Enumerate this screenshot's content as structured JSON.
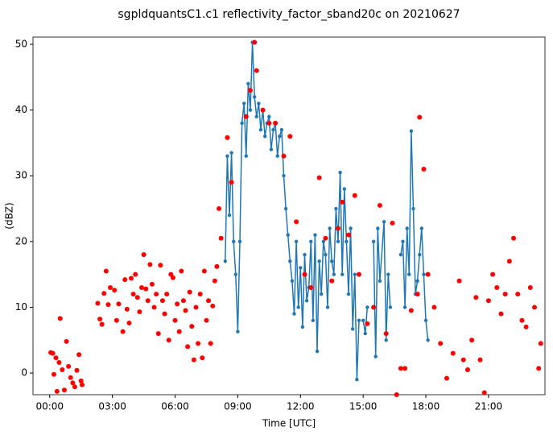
{
  "chart_data": {
    "type": "line",
    "title": "sgpldquantsC1.c1 reflectivity_factor_sband20c on 20210627",
    "xlabel": "Time [UTC]",
    "ylabel": "(dBZ)",
    "xlim": [
      -0.8,
      23.7
    ],
    "ylim": [
      -3.3,
      51.1
    ],
    "xticks": [
      {
        "value": 0,
        "label": "00:00"
      },
      {
        "value": 3,
        "label": "03:00"
      },
      {
        "value": 6,
        "label": "06:00"
      },
      {
        "value": 9,
        "label": "09:00"
      },
      {
        "value": 12,
        "label": "12:00"
      },
      {
        "value": 15,
        "label": "15:00"
      },
      {
        "value": 18,
        "label": "18:00"
      },
      {
        "value": 21,
        "label": "21:00"
      }
    ],
    "yticks": [
      0,
      10,
      20,
      30,
      40,
      50
    ],
    "series": [
      {
        "type": "line",
        "color": "#1f77b4",
        "x": [
          8.4,
          8.5,
          8.6,
          8.7,
          8.8,
          8.9,
          9.0,
          9.1,
          9.2,
          9.3,
          9.4,
          9.5,
          9.6,
          9.7,
          9.8,
          9.9,
          10.0,
          10.1,
          10.2,
          10.3,
          10.4,
          10.5,
          10.6,
          10.7,
          10.8,
          10.9,
          11.0,
          11.1,
          11.2,
          11.3,
          11.4,
          11.5,
          11.6,
          11.7,
          11.8,
          11.9,
          12.0,
          12.1,
          12.2,
          12.3,
          12.4,
          12.5,
          12.6,
          12.7,
          12.8,
          12.9,
          13.0,
          13.1,
          13.2,
          13.3,
          13.4,
          13.5,
          13.6,
          13.7,
          13.8,
          13.9,
          14.0,
          14.1,
          14.2,
          14.3,
          14.4,
          14.5,
          14.6,
          14.7,
          14.8,
          14.9,
          15.0,
          15.1,
          15.2,
          15.35,
          15.5,
          15.6,
          15.7,
          15.8,
          16.0,
          16.1,
          16.2,
          16.3,
          16.55,
          16.8,
          16.9,
          17.0,
          17.1,
          17.2,
          17.3,
          17.4,
          17.5,
          17.6,
          17.7,
          17.8,
          17.9,
          18.0,
          18.1
        ],
        "values": [
          17,
          33,
          24,
          33.5,
          20,
          15,
          6.3,
          20,
          38,
          41,
          33,
          44,
          40,
          50.3,
          42,
          39,
          41,
          37,
          40,
          36,
          38,
          39,
          34,
          37,
          38,
          33,
          36,
          37,
          30,
          25,
          21,
          17,
          14,
          9,
          20,
          10,
          16,
          7,
          18,
          11,
          13,
          20,
          8,
          21,
          3.3,
          17,
          12,
          20,
          18,
          10,
          22,
          17,
          15,
          25,
          20,
          30.5,
          15,
          28,
          20,
          12,
          22,
          6.7,
          15,
          -1,
          8,
          null,
          8,
          6,
          10,
          null,
          20,
          2.5,
          22,
          14,
          23,
          5,
          15,
          10,
          null,
          18,
          20,
          10,
          22,
          15,
          36.8,
          25,
          12,
          14,
          18,
          22,
          15,
          8,
          5
        ]
      },
      {
        "type": "scatter",
        "color": "#ff0000",
        "x": [
          0.05,
          0.15,
          0.2,
          0.3,
          0.35,
          0.45,
          0.5,
          0.6,
          0.7,
          0.8,
          0.9,
          1.0,
          1.1,
          1.2,
          1.3,
          1.4,
          1.5,
          1.55,
          2.3,
          2.4,
          2.5,
          2.6,
          2.7,
          2.8,
          2.9,
          3.1,
          3.2,
          3.3,
          3.5,
          3.6,
          3.7,
          3.8,
          3.9,
          4.0,
          4.1,
          4.2,
          4.3,
          4.4,
          4.5,
          4.6,
          4.7,
          4.8,
          4.9,
          5.0,
          5.1,
          5.2,
          5.3,
          5.4,
          5.5,
          5.6,
          5.7,
          5.8,
          5.9,
          6.0,
          6.1,
          6.2,
          6.3,
          6.4,
          6.5,
          6.6,
          6.7,
          6.8,
          6.9,
          7.0,
          7.1,
          7.2,
          7.3,
          7.4,
          7.5,
          7.6,
          7.7,
          7.8,
          7.9,
          8.0,
          8.1,
          8.2,
          8.5,
          8.7,
          9.4,
          9.6,
          9.8,
          9.9,
          10.2,
          10.5,
          10.8,
          11.2,
          11.5,
          11.8,
          12.2,
          12.5,
          12.9,
          13.2,
          13.5,
          13.8,
          14.0,
          14.3,
          14.6,
          14.8,
          15.2,
          15.5,
          15.8,
          16.1,
          16.4,
          16.6,
          16.8,
          17.0,
          17.3,
          17.6,
          17.7,
          17.9,
          18.1,
          18.4,
          18.7,
          19.0,
          19.3,
          19.6,
          19.8,
          20.0,
          20.2,
          20.4,
          20.6,
          20.8,
          21.0,
          21.2,
          21.4,
          21.6,
          21.8,
          22.0,
          22.2,
          22.4,
          22.6,
          22.8,
          23.0,
          23.2,
          23.4,
          23.5
        ],
        "values": [
          3.1,
          3.0,
          -0.2,
          2.3,
          -2.8,
          1.6,
          8.3,
          0.5,
          -2.6,
          4.8,
          1.0,
          -0.7,
          -1.5,
          -2.1,
          0.4,
          2.8,
          -1.2,
          -1.8,
          10.6,
          8.2,
          7.4,
          12.1,
          15.5,
          10.4,
          13.0,
          12.6,
          8.0,
          10.5,
          6.3,
          14.2,
          9.7,
          7.6,
          14.4,
          12.0,
          15.0,
          11.5,
          9.3,
          13.0,
          18.0,
          12.8,
          11.0,
          16.5,
          13.5,
          10.0,
          12.0,
          6.0,
          16.4,
          11.0,
          9.0,
          12.0,
          5.0,
          15.0,
          14.5,
          8.0,
          10.5,
          6.3,
          15.5,
          11.0,
          9.5,
          4.0,
          12.3,
          7.1,
          2.0,
          10.0,
          4.5,
          12.0,
          2.3,
          15.5,
          8.0,
          11.0,
          4.5,
          10.2,
          14.0,
          16.2,
          25.0,
          20.5,
          35.8,
          29.0,
          39,
          43,
          50.3,
          46,
          40,
          38,
          38,
          33,
          36,
          23,
          15,
          13,
          29.7,
          20.5,
          14,
          22,
          26,
          21,
          27,
          15,
          7.5,
          10,
          25.5,
          6,
          22.8,
          -3.3,
          0.7,
          0.7,
          9.5,
          12,
          38.9,
          31,
          15,
          10,
          4.5,
          -0.8,
          3,
          14,
          2,
          0.5,
          5,
          11.5,
          2,
          -3,
          11,
          15,
          13,
          9,
          12,
          17,
          20.5,
          12,
          8,
          7,
          13,
          10,
          0.7,
          4.5
        ]
      }
    ]
  }
}
